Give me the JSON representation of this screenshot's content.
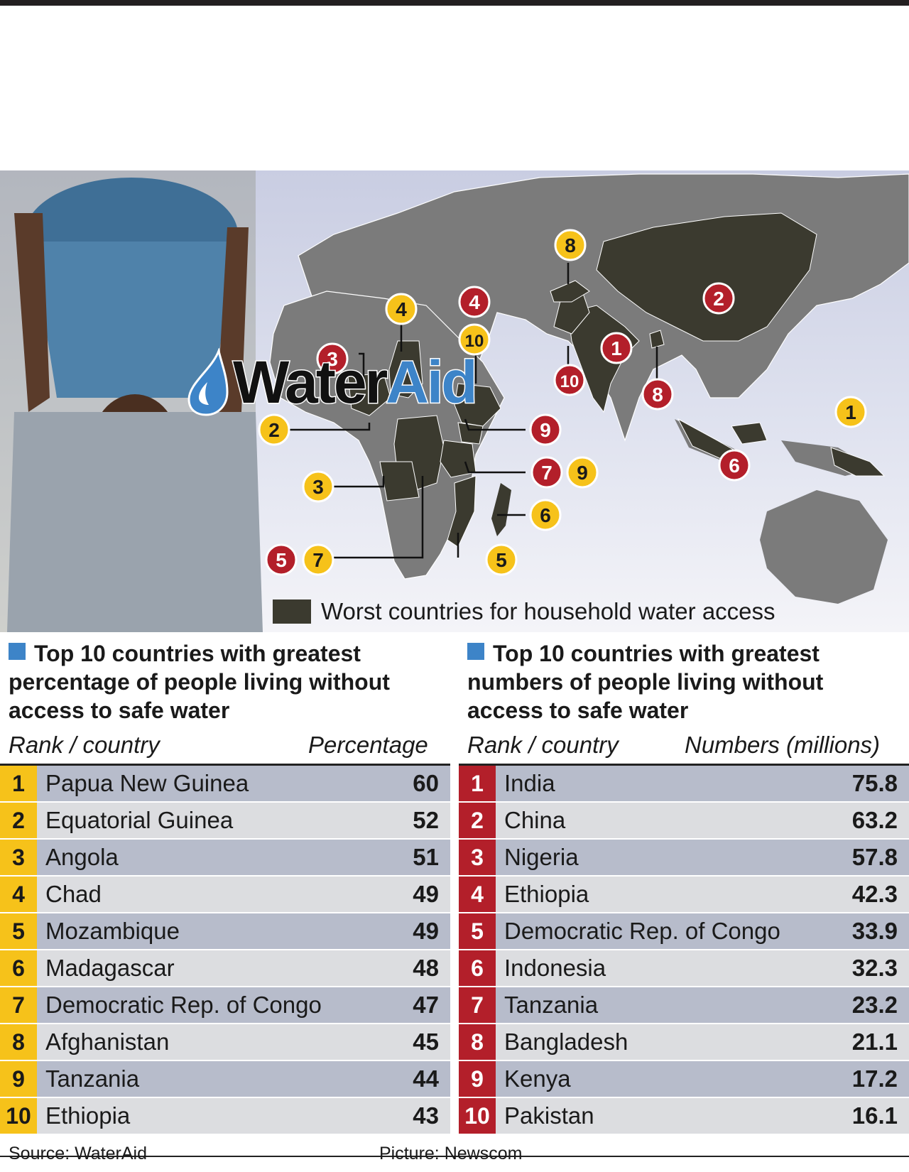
{
  "logo": {
    "part1": "Water",
    "part2": "Aid"
  },
  "legend": {
    "label": "Worst countries for household water access",
    "color": "#3b3a2f"
  },
  "colors": {
    "yellow": "#f6c21a",
    "red": "#b31f2a",
    "blue": "#3d84c8",
    "land": "#7b7b7b",
    "highlight": "#3b3a2f"
  },
  "map_markers": [
    {
      "label": "1",
      "color": "yellow",
      "country": "Papua New Guinea"
    },
    {
      "label": "2",
      "color": "yellow",
      "country": "Equatorial Guinea"
    },
    {
      "label": "3",
      "color": "yellow",
      "country": "Angola"
    },
    {
      "label": "4",
      "color": "yellow",
      "country": "Chad"
    },
    {
      "label": "5",
      "color": "yellow",
      "country": "Mozambique"
    },
    {
      "label": "6",
      "color": "yellow",
      "country": "Madagascar"
    },
    {
      "label": "7",
      "color": "yellow",
      "country": "Democratic Rep. of Congo"
    },
    {
      "label": "8",
      "color": "yellow",
      "country": "Afghanistan"
    },
    {
      "label": "9",
      "color": "yellow",
      "country": "Tanzania"
    },
    {
      "label": "10",
      "color": "yellow",
      "country": "Ethiopia"
    },
    {
      "label": "1",
      "color": "red",
      "country": "India"
    },
    {
      "label": "2",
      "color": "red",
      "country": "China"
    },
    {
      "label": "3",
      "color": "red",
      "country": "Nigeria"
    },
    {
      "label": "4",
      "color": "red",
      "country": "Ethiopia"
    },
    {
      "label": "5",
      "color": "red",
      "country": "Democratic Rep. of Congo"
    },
    {
      "label": "6",
      "color": "red",
      "country": "Indonesia"
    },
    {
      "label": "7",
      "color": "red",
      "country": "Tanzania"
    },
    {
      "label": "8",
      "color": "red",
      "country": "Bangladesh"
    },
    {
      "label": "9",
      "color": "red",
      "country": "Kenya"
    },
    {
      "label": "10",
      "color": "red",
      "country": "Pakistan"
    }
  ],
  "left_panel": {
    "title_line1": "Top 10 countries with greatest",
    "title_line2": "percentage of people living without",
    "title_line3": "access to safe water",
    "col_rank": "Rank / country",
    "col_value": "Percentage",
    "rows": [
      {
        "rank": "1",
        "country": "Papua New Guinea",
        "value": "60"
      },
      {
        "rank": "2",
        "country": "Equatorial Guinea",
        "value": "52"
      },
      {
        "rank": "3",
        "country": "Angola",
        "value": "51"
      },
      {
        "rank": "4",
        "country": "Chad",
        "value": "49"
      },
      {
        "rank": "5",
        "country": "Mozambique",
        "value": "49"
      },
      {
        "rank": "6",
        "country": "Madagascar",
        "value": "48"
      },
      {
        "rank": "7",
        "country": "Democratic Rep. of Congo",
        "value": "47"
      },
      {
        "rank": "8",
        "country": "Afghanistan",
        "value": "45"
      },
      {
        "rank": "9",
        "country": "Tanzania",
        "value": "44"
      },
      {
        "rank": "10",
        "country": "Ethiopia",
        "value": "43"
      }
    ]
  },
  "right_panel": {
    "title_line1": "Top 10 countries with greatest",
    "title_line2": "numbers of people living without",
    "title_line3": "access to safe water",
    "col_rank": "Rank / country",
    "col_value": "Numbers (millions)",
    "rows": [
      {
        "rank": "1",
        "country": "India",
        "value": "75.8"
      },
      {
        "rank": "2",
        "country": "China",
        "value": "63.2"
      },
      {
        "rank": "3",
        "country": "Nigeria",
        "value": "57.8"
      },
      {
        "rank": "4",
        "country": "Ethiopia",
        "value": "42.3"
      },
      {
        "rank": "5",
        "country": "Democratic Rep. of Congo",
        "value": "33.9"
      },
      {
        "rank": "6",
        "country": "Indonesia",
        "value": "32.3"
      },
      {
        "rank": "7",
        "country": "Tanzania",
        "value": "23.2"
      },
      {
        "rank": "8",
        "country": "Bangladesh",
        "value": "21.1"
      },
      {
        "rank": "9",
        "country": "Kenya",
        "value": "17.2"
      },
      {
        "rank": "10",
        "country": "Pakistan",
        "value": "16.1"
      }
    ]
  },
  "footer": {
    "source": "Source: WaterAid",
    "picture": "Picture: Newscom"
  }
}
